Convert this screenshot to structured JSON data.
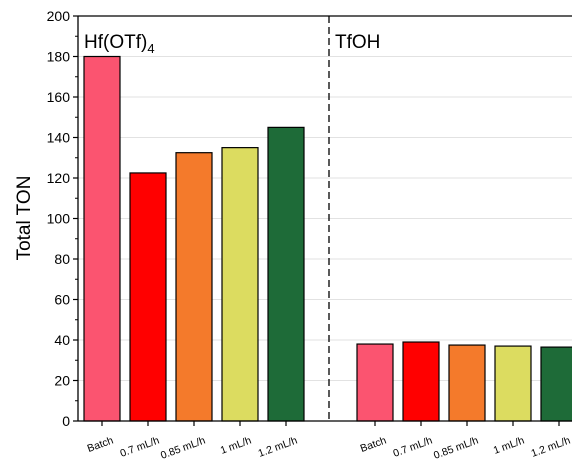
{
  "chart_data": {
    "type": "bar",
    "title": "",
    "xlabel": "",
    "ylabel": "Total TON",
    "ylim": [
      0,
      200
    ],
    "yticks": [
      0,
      20,
      40,
      60,
      80,
      100,
      120,
      140,
      160,
      180,
      200
    ],
    "grid": true,
    "legend": "none",
    "panels": [
      {
        "label_main": "Hf(OTf)",
        "label_sub": "4",
        "categories": [
          "Batch",
          "0.7 mL/h",
          "0.85 mL/h",
          "1 mL/h",
          "1.2 mL/h"
        ],
        "values": [
          180,
          122.5,
          132.5,
          135,
          145
        ]
      },
      {
        "label_main": "TfOH",
        "label_sub": "",
        "categories": [
          "Batch",
          "0.7 mL/h",
          "0.85 mL/h",
          "1 mL/h",
          "1.2 mL/h"
        ],
        "values": [
          38,
          39,
          37.5,
          37,
          36.5
        ]
      }
    ],
    "bar_colors": [
      "#fb5470",
      "#ff0000",
      "#f47a2b",
      "#dcdc60",
      "#1e6b38"
    ]
  }
}
